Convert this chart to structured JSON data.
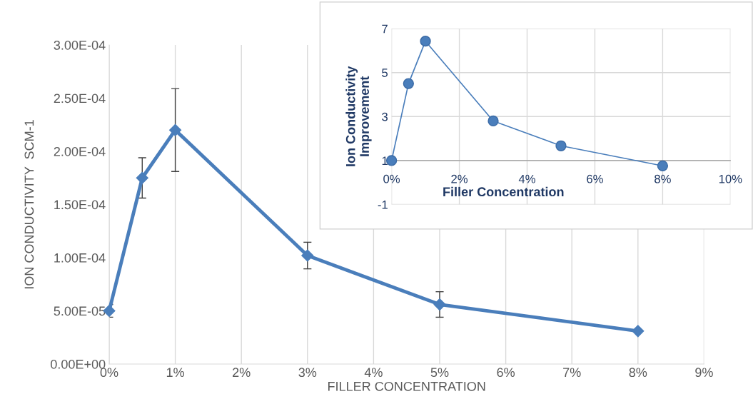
{
  "chart_data": [
    {
      "type": "line",
      "xlabel": "FILLER CONCENTRATION",
      "ylabel": "ION CONDUCTIVITY  SCM-1",
      "x": [
        0,
        0.5,
        1,
        3,
        5,
        8
      ],
      "series": [
        {
          "color": "#4a7ebb",
          "values": [
            5e-05,
            0.000175,
            0.00022,
            0.000102,
            5.6e-05,
            3.1e-05
          ],
          "errors": [
            6e-06,
            1.9e-05,
            3.9e-05,
            1.25e-05,
            1.2e-05,
            null
          ]
        }
      ],
      "marker": "diamond",
      "grid": "x",
      "xlim": [
        0,
        9
      ],
      "xticks": [
        {
          "value": 0,
          "label": "0%"
        },
        {
          "value": 1,
          "label": "1%"
        },
        {
          "value": 2,
          "label": "2%"
        },
        {
          "value": 3,
          "label": "3%"
        },
        {
          "value": 4,
          "label": "4%"
        },
        {
          "value": 5,
          "label": "5%"
        },
        {
          "value": 6,
          "label": "6%"
        },
        {
          "value": 7,
          "label": "7%"
        },
        {
          "value": 8,
          "label": "8%"
        },
        {
          "value": 9,
          "label": "9%"
        }
      ],
      "ylim": [
        0,
        0.0003
      ],
      "yticks": [
        {
          "value": 0,
          "label": "0.00E+00"
        },
        {
          "value": 5e-05,
          "label": "5.00E-05"
        },
        {
          "value": 0.0001,
          "label": "1.00E-04"
        },
        {
          "value": 0.00015,
          "label": "1.50E-04"
        },
        {
          "value": 0.0002,
          "label": "2.00E-04"
        },
        {
          "value": 0.00025,
          "label": "2.50E-04"
        },
        {
          "value": 0.0003,
          "label": "3.00E-04"
        }
      ]
    },
    {
      "type": "line",
      "xlabel": "Filler Concentration",
      "ylabel": "Ion Conductivity\nImprovement",
      "x": [
        0,
        0.5,
        1,
        3,
        5,
        8
      ],
      "series": [
        {
          "color": "#4a7ebb",
          "values": [
            1.0,
            4.5,
            6.43,
            2.8,
            1.67,
            0.76
          ]
        }
      ],
      "marker": "circle",
      "grid": true,
      "xlim": [
        0,
        10
      ],
      "xticks": [
        {
          "value": 0,
          "label": "0%"
        },
        {
          "value": 2,
          "label": "2%"
        },
        {
          "value": 4,
          "label": "4%"
        },
        {
          "value": 6,
          "label": "6%"
        },
        {
          "value": 8,
          "label": "8%"
        },
        {
          "value": 10,
          "label": "10%"
        }
      ],
      "ylim": [
        -1,
        7
      ],
      "yticks": [
        -1,
        1,
        3,
        5,
        7
      ]
    }
  ]
}
